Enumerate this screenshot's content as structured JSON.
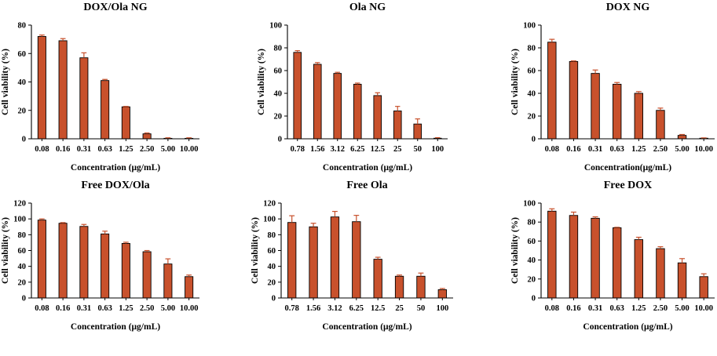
{
  "colors": {
    "bar_fill": "#c8512c",
    "bar_stroke": "#000000",
    "error_bar": "#c8512c",
    "axis": "#000000"
  },
  "chart_data": [
    {
      "type": "bar",
      "title": "DOX/Ola NG",
      "xlabel": "Concentration (μg/mL)",
      "ylabel": "Cell viability (%)",
      "categories": [
        "0.08",
        "0.16",
        "0.31",
        "0.63",
        "1.25",
        "2.50",
        "5.00",
        "10.00"
      ],
      "values": [
        72,
        69,
        57,
        41,
        22.5,
        3.5,
        0.3,
        0.3
      ],
      "errors": [
        1,
        1.5,
        3.5,
        0.8,
        0.3,
        0.6,
        0.4,
        0.4
      ],
      "ylim": [
        0,
        80
      ],
      "yticks": [
        0,
        20,
        40,
        60,
        80
      ]
    },
    {
      "type": "bar",
      "title": "Ola NG",
      "xlabel": "Concentration (μg/mL)",
      "ylabel": "Cell viability (%)",
      "categories": [
        "0.78",
        "1.56",
        "3.12",
        "6.25",
        "12.5",
        "25",
        "50",
        "100"
      ],
      "values": [
        76,
        65.5,
        57.5,
        48,
        38,
        24.5,
        13,
        0.5
      ],
      "errors": [
        1.5,
        1.5,
        1,
        1,
        2.5,
        4,
        4.5,
        0.5
      ],
      "ylim": [
        0,
        100
      ],
      "yticks": [
        0,
        20,
        40,
        60,
        80,
        100
      ]
    },
    {
      "type": "bar",
      "title": "DOX NG",
      "xlabel": "Concentration(μg/mL)",
      "ylabel": "Cell viability (%)",
      "categories": [
        "0.08",
        "0.16",
        "0.31",
        "0.63",
        "1.25",
        "2.50",
        "5.00",
        "10.00"
      ],
      "values": [
        85,
        68,
        57.5,
        48,
        40,
        25,
        3,
        0.5
      ],
      "errors": [
        2.5,
        0.5,
        3,
        1.5,
        1.5,
        2,
        0.8,
        0.3
      ],
      "ylim": [
        0,
        100
      ],
      "yticks": [
        0,
        20,
        40,
        60,
        80,
        100
      ]
    },
    {
      "type": "bar",
      "title": "Free DOX/Ola",
      "xlabel": "Concentration (μg/mL)",
      "ylabel": "Cell viability (%)",
      "categories": [
        "0.08",
        "0.16",
        "0.31",
        "0.63",
        "1.25",
        "2.50",
        "5.00",
        "10.00"
      ],
      "values": [
        98.5,
        94.5,
        90.5,
        81,
        69,
        58.5,
        43,
        27
      ],
      "errors": [
        1.5,
        0.8,
        2.5,
        3.5,
        1.5,
        1.5,
        6.5,
        2
      ],
      "ylim": [
        0,
        120
      ],
      "yticks": [
        0,
        20,
        40,
        60,
        80,
        100,
        120
      ]
    },
    {
      "type": "bar",
      "title": "Free Ola",
      "xlabel": "Concentration (μg/mL)",
      "ylabel": "Cell viability (%)",
      "categories": [
        "0.78",
        "1.56",
        "3.12",
        "6.25",
        "12.5",
        "25",
        "50",
        "100"
      ],
      "values": [
        95.5,
        90,
        102.5,
        96.5,
        49,
        27.5,
        27.5,
        10.5
      ],
      "errors": [
        8.5,
        4.5,
        7,
        8,
        2.5,
        1.5,
        4,
        1.5
      ],
      "ylim": [
        0,
        120
      ],
      "yticks": [
        0,
        20,
        40,
        60,
        80,
        100,
        120
      ]
    },
    {
      "type": "bar",
      "title": "Free DOX",
      "xlabel": "Concentration (μg/mL)",
      "ylabel": "Cell viability (%)",
      "categories": [
        "0.08",
        "0.16",
        "0.31",
        "0.63",
        "1.25",
        "2.50",
        "5.00",
        "10.00"
      ],
      "values": [
        91.5,
        87,
        84,
        74,
        61.5,
        52,
        37,
        22.5
      ],
      "errors": [
        2.5,
        3.5,
        1.5,
        0.5,
        2.5,
        2,
        4.5,
        3
      ],
      "ylim": [
        0,
        100
      ],
      "yticks": [
        0,
        20,
        40,
        60,
        80,
        100
      ]
    }
  ]
}
